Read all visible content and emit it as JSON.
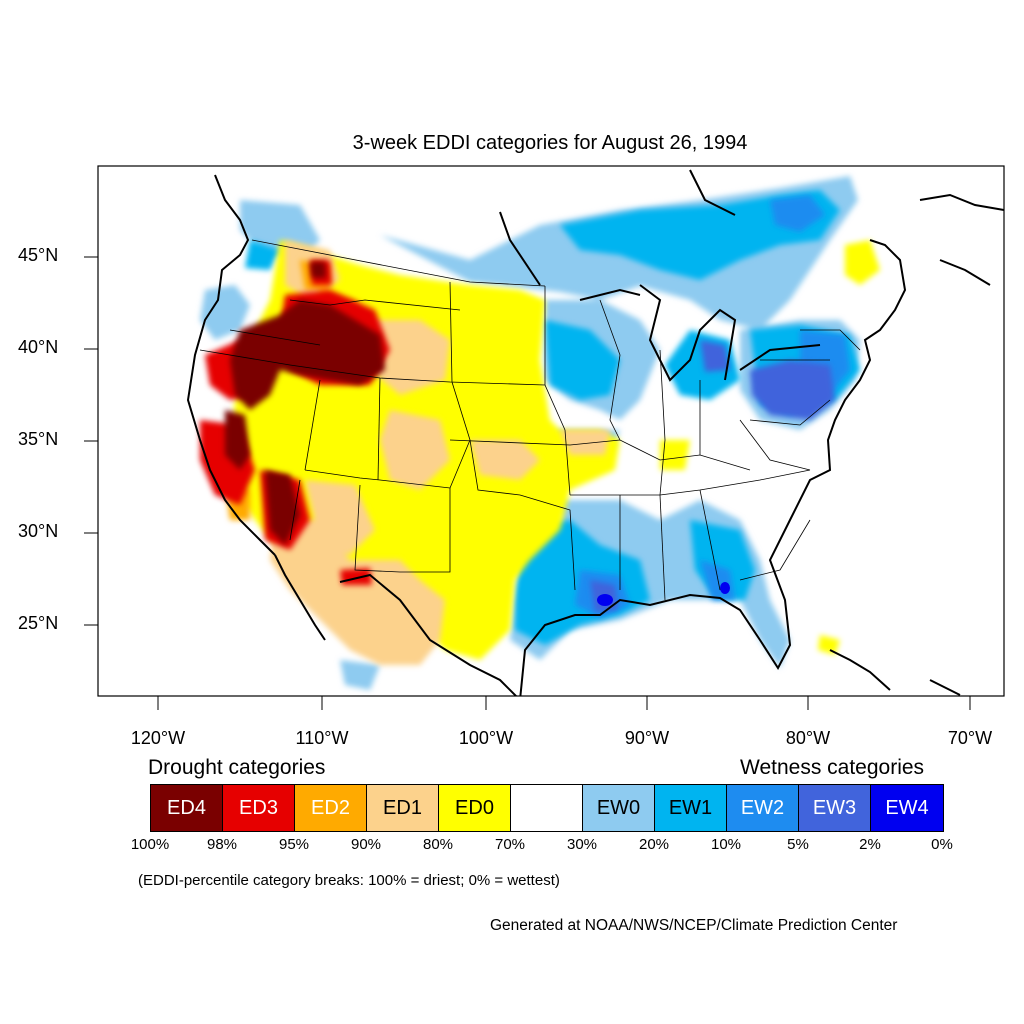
{
  "title": "3-week EDDI categories for August 26, 1994",
  "axes": {
    "y_ticks": [
      "45°N",
      "40°N",
      "35°N",
      "30°N",
      "25°N"
    ],
    "x_ticks": [
      "120°W",
      "110°W",
      "100°W",
      "90°W",
      "80°W",
      "70°W"
    ]
  },
  "legend": {
    "drought_heading": "Drought categories",
    "wetness_heading": "Wetness categories",
    "categories": [
      {
        "label": "ED4",
        "color": "#7a0000",
        "text_color": "#ffffff"
      },
      {
        "label": "ED3",
        "color": "#e60000",
        "text_color": "#ffffff"
      },
      {
        "label": "ED2",
        "color": "#ffaa00",
        "text_color": "#ffffff"
      },
      {
        "label": "ED1",
        "color": "#fcd28c",
        "text_color": "#000000"
      },
      {
        "label": "ED0",
        "color": "#ffff00",
        "text_color": "#000000"
      },
      {
        "label": "",
        "color": "#ffffff",
        "text_color": "#000000"
      },
      {
        "label": "EW0",
        "color": "#8ecbf0",
        "text_color": "#000000"
      },
      {
        "label": "EW1",
        "color": "#00b4f0",
        "text_color": "#000000"
      },
      {
        "label": "EW2",
        "color": "#1e8cf0",
        "text_color": "#ffffff"
      },
      {
        "label": "EW3",
        "color": "#4164dc",
        "text_color": "#ffffff"
      },
      {
        "label": "EW4",
        "color": "#0000f0",
        "text_color": "#ffffff"
      }
    ],
    "breaks": [
      "100%",
      "98%",
      "95%",
      "90%",
      "80%",
      "70%",
      "30%",
      "20%",
      "10%",
      "5%",
      "2%",
      "0%"
    ]
  },
  "note": "(EDDI-percentile category breaks: 100% = driest; 0% = wettest)",
  "credit": "Generated at NOAA/NWS/NCEP/Climate Prediction Center"
}
